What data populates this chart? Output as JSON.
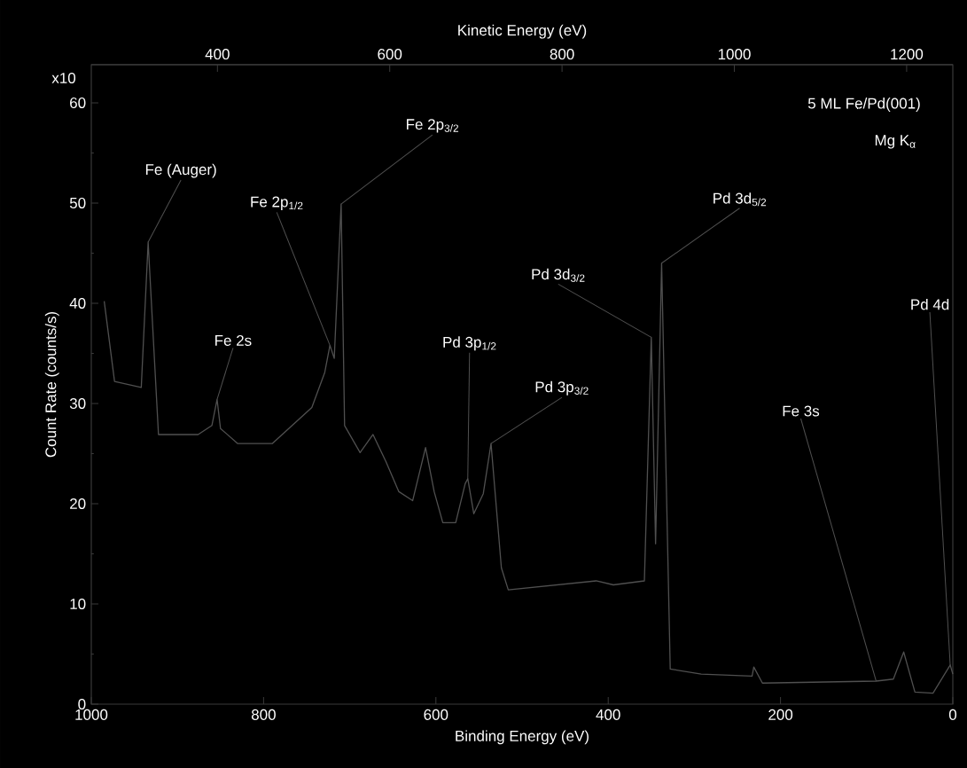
{
  "chart_data": {
    "type": "line",
    "xlabel": "Binding Energy (eV)",
    "ylabel": "Count Rate (counts/s)",
    "x2label": "Kinetic Energy (eV)",
    "x": [
      985,
      973,
      942,
      934,
      922,
      876,
      860,
      854,
      850,
      830,
      790,
      744,
      729,
      723,
      718,
      710,
      706,
      688,
      673,
      658,
      643,
      627,
      612,
      602,
      592,
      577,
      566,
      563,
      556,
      545,
      536,
      524,
      516,
      414,
      394,
      358,
      350,
      345,
      338,
      328,
      292,
      233,
      231,
      221,
      89,
      69,
      57,
      44,
      23,
      3,
      0
    ],
    "values": [
      40.2,
      32.2,
      31.6,
      46.1,
      26.9,
      26.9,
      27.8,
      30.4,
      27.5,
      26.0,
      26.0,
      29.6,
      33.1,
      35.8,
      34.5,
      49.9,
      27.8,
      25.1,
      26.9,
      24.2,
      21.2,
      20.3,
      25.6,
      21.2,
      18.1,
      18.1,
      22.0,
      22.5,
      19.0,
      21.0,
      26.0,
      13.6,
      11.4,
      12.3,
      11.9,
      12.3,
      36.6,
      16.0,
      44.0,
      3.5,
      3.0,
      2.8,
      3.7,
      2.1,
      2.3,
      2.5,
      5.2,
      1.2,
      1.1,
      3.9,
      3.0
    ],
    "color": "#505050",
    "marker": "none",
    "xlim": [
      1000,
      0
    ],
    "xticks": [
      1000,
      800,
      600,
      400,
      200,
      0
    ],
    "ylim": [
      0,
      63.8
    ],
    "yticks": [
      0,
      10,
      20,
      30,
      40,
      50,
      60
    ],
    "x2lim": [
      253.6,
      1253.6
    ],
    "x2ticks": [
      400,
      600,
      800,
      1000,
      1200
    ],
    "annotations": [
      {
        "text": "Fe (Auger)",
        "x": 934,
        "y": 46.1
      },
      {
        "text": "Fe 2p$_{1/2}$",
        "x": 723,
        "y": 35.8
      },
      {
        "text": "Fe 2p$_{3/2}$",
        "x": 710,
        "y": 49.9
      },
      {
        "text": "Fe 2s",
        "x": 854,
        "y": 30.4
      },
      {
        "text": "Pd 3p$_{1/2}$",
        "x": 563,
        "y": 22.5
      },
      {
        "text": "Pd 3p$_{3/2}$",
        "x": 536,
        "y": 26.0
      },
      {
        "text": "Pd 3d$_{3/2}$",
        "x": 350,
        "y": 36.6
      },
      {
        "text": "Pd 3d$_{5/2}$",
        "x": 338,
        "y": 44.0
      },
      {
        "text": "Fe 3s",
        "x": 89,
        "y": 2.3
      },
      {
        "text": "Pd 4d",
        "x": 3,
        "y": 3.9
      },
      "5 ML Fe/Pd(001)",
      "Mg K$_{α}$",
      "x10"
    ]
  }
}
